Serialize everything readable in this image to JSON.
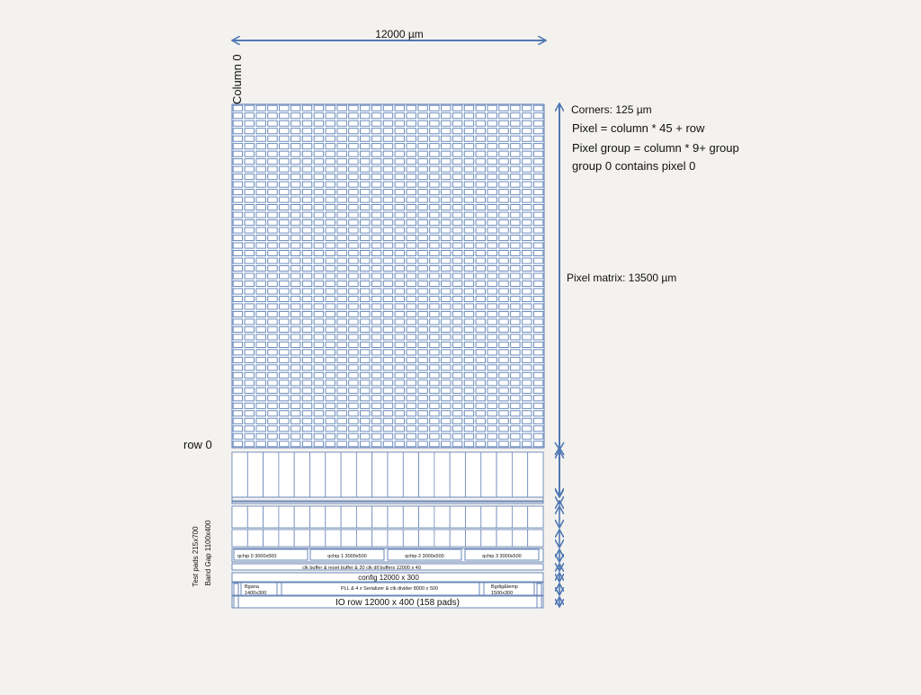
{
  "colors": {
    "background": "#f4f2ef",
    "grid_line": "#5b7fb6",
    "arrow": "#4f78b3",
    "block_border": "#6a87b8",
    "text": "#111111"
  },
  "labels": {
    "width_dimension": "12000 µm",
    "column_zero": "Column 0",
    "row_zero": "row 0",
    "corners": "Corners: 125 µm",
    "pixel_formula": "Pixel = column * 45 + row",
    "group_formula": "Pixel group = column * 9+ group",
    "group_zero": "group 0 contains pixel 0",
    "matrix_height": "Pixel matrix: 13500 µm",
    "test_pads": "Test pads 215x700",
    "band_gap": "Band Gap 1100x400"
  },
  "matrix": {
    "columns": 27,
    "rows": 45
  },
  "periphery": {
    "qchips": [
      "qchip 0 3000x500",
      "qchip 1 3000x500",
      "qchip 2 3000x500",
      "qchip 3 3000x500"
    ],
    "clk_buffer": "clk buffer & reset buffer & 20 clk dll buffers 12000 x 40",
    "config": "config 12000 x 300",
    "bgana_line1": "Bgana",
    "bgana_line2": "1400x300",
    "pll": "PLL & 4 x Serializer & clk divider  8000 x 500",
    "bgdig_line1": "Bgdig&temp",
    "bgdig_line2": "1500x300",
    "io_row": "IO row 12000 x 400 (158 pads)"
  }
}
